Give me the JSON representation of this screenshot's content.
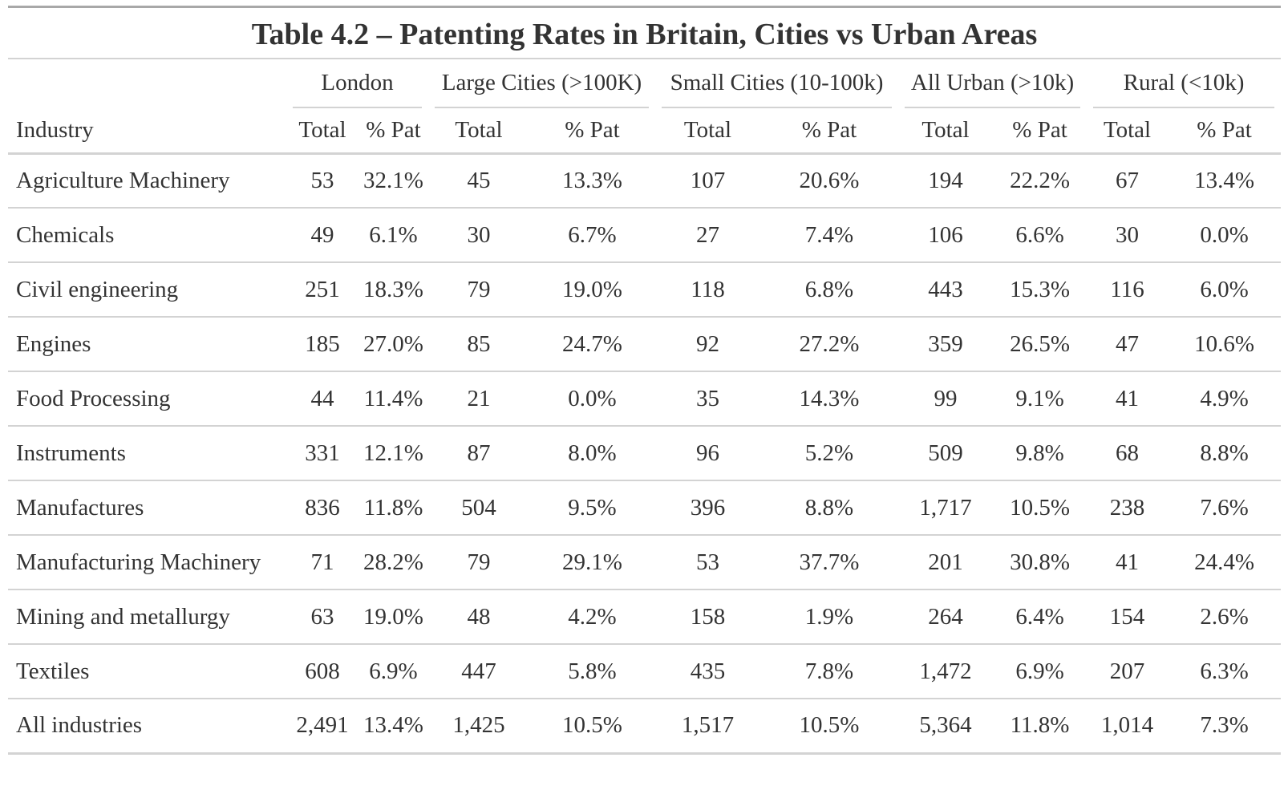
{
  "title": "Table 4.2 – Patenting Rates in Britain, Cities vs Urban Areas",
  "stub_header": "Industry",
  "groups": [
    {
      "label": "London",
      "cols": [
        "Total",
        "% Pat"
      ]
    },
    {
      "label": "Large Cities (>100K)",
      "cols": [
        "Total",
        "% Pat"
      ]
    },
    {
      "label": "Small Cities (10-100k)",
      "cols": [
        "Total",
        "% Pat"
      ]
    },
    {
      "label": "All Urban (>10k)",
      "cols": [
        "Total",
        "% Pat"
      ]
    },
    {
      "label": "Rural (<10k)",
      "cols": [
        "Total",
        "% Pat"
      ]
    }
  ],
  "rows": [
    {
      "industry": "Agriculture Machinery",
      "values": [
        "53",
        "32.1%",
        "45",
        "13.3%",
        "107",
        "20.6%",
        "194",
        "22.2%",
        "67",
        "13.4%"
      ]
    },
    {
      "industry": "Chemicals",
      "values": [
        "49",
        "6.1%",
        "30",
        "6.7%",
        "27",
        "7.4%",
        "106",
        "6.6%",
        "30",
        "0.0%"
      ]
    },
    {
      "industry": "Civil engineering",
      "values": [
        "251",
        "18.3%",
        "79",
        "19.0%",
        "118",
        "6.8%",
        "443",
        "15.3%",
        "116",
        "6.0%"
      ]
    },
    {
      "industry": "Engines",
      "values": [
        "185",
        "27.0%",
        "85",
        "24.7%",
        "92",
        "27.2%",
        "359",
        "26.5%",
        "47",
        "10.6%"
      ]
    },
    {
      "industry": "Food Processing",
      "values": [
        "44",
        "11.4%",
        "21",
        "0.0%",
        "35",
        "14.3%",
        "99",
        "9.1%",
        "41",
        "4.9%"
      ]
    },
    {
      "industry": "Instruments",
      "values": [
        "331",
        "12.1%",
        "87",
        "8.0%",
        "96",
        "5.2%",
        "509",
        "9.8%",
        "68",
        "8.8%"
      ]
    },
    {
      "industry": "Manufactures",
      "values": [
        "836",
        "11.8%",
        "504",
        "9.5%",
        "396",
        "8.8%",
        "1,717",
        "10.5%",
        "238",
        "7.6%"
      ]
    },
    {
      "industry": "Manufacturing Machinery",
      "values": [
        "71",
        "28.2%",
        "79",
        "29.1%",
        "53",
        "37.7%",
        "201",
        "30.8%",
        "41",
        "24.4%"
      ]
    },
    {
      "industry": "Mining and metallurgy",
      "values": [
        "63",
        "19.0%",
        "48",
        "4.2%",
        "158",
        "1.9%",
        "264",
        "6.4%",
        "154",
        "2.6%"
      ]
    },
    {
      "industry": "Textiles",
      "values": [
        "608",
        "6.9%",
        "447",
        "5.8%",
        "435",
        "7.8%",
        "1,472",
        "6.9%",
        "207",
        "6.3%"
      ]
    },
    {
      "industry": "All industries",
      "values": [
        "2,491",
        "13.4%",
        "1,425",
        "10.5%",
        "1,517",
        "10.5%",
        "5,364",
        "11.8%",
        "1,014",
        "7.3%"
      ]
    }
  ]
}
